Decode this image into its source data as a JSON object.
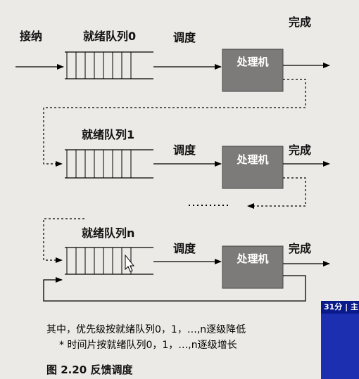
{
  "labels": {
    "accept": "接纳",
    "queue0": "就绪队列0",
    "queue1": "就绪队列1",
    "queueN": "就绪队列n",
    "schedule": "调度",
    "complete": "完成",
    "processor": "处理机"
  },
  "caption": {
    "line1": "其中，优先级按就绪队列0，1，…,n逐级降低",
    "line2": "* 时间片按就绪队列0，1，…,n逐级增长"
  },
  "figure_title": "图 2.20  反馈调度",
  "side_panel": {
    "time_label": "31分 | 主"
  },
  "colors": {
    "processor_fill": "#7c7b79",
    "panel_blue": "#1c2fb0"
  }
}
